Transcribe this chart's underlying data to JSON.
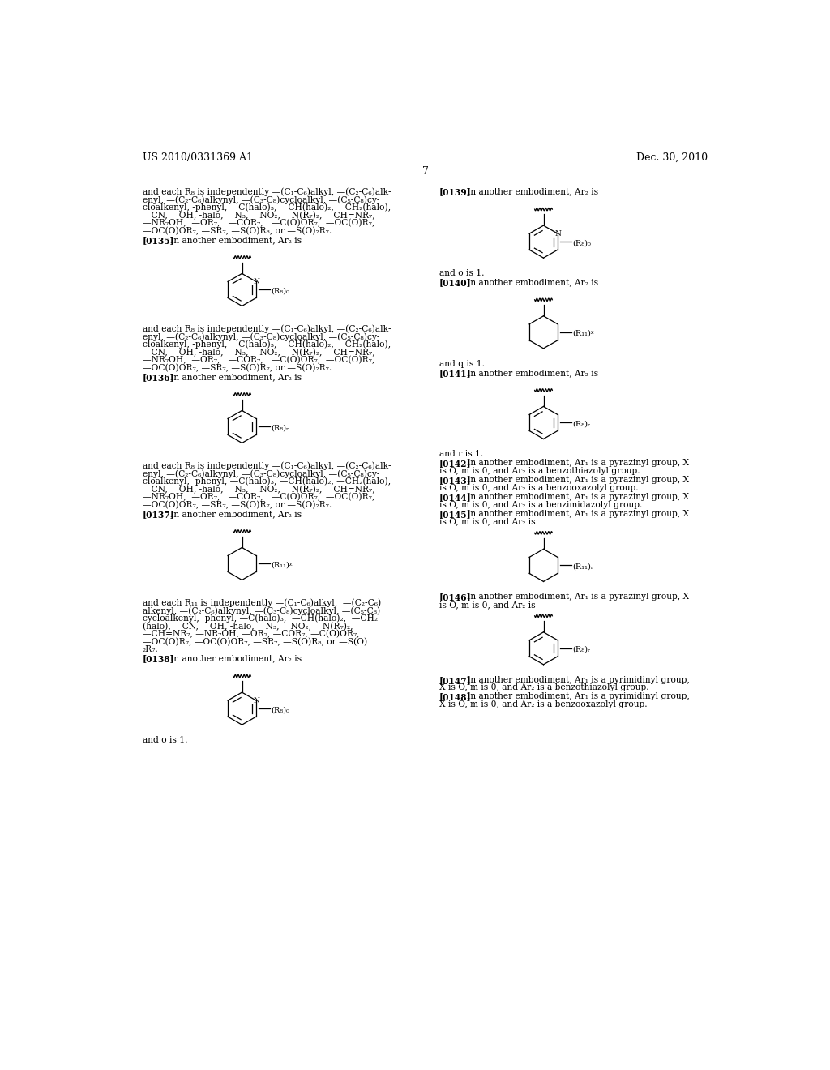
{
  "background_color": "#ffffff",
  "header_left": "US 2010/0331369 A1",
  "header_right": "Dec. 30, 2010",
  "page_number": "7",
  "font_size": 8.0
}
